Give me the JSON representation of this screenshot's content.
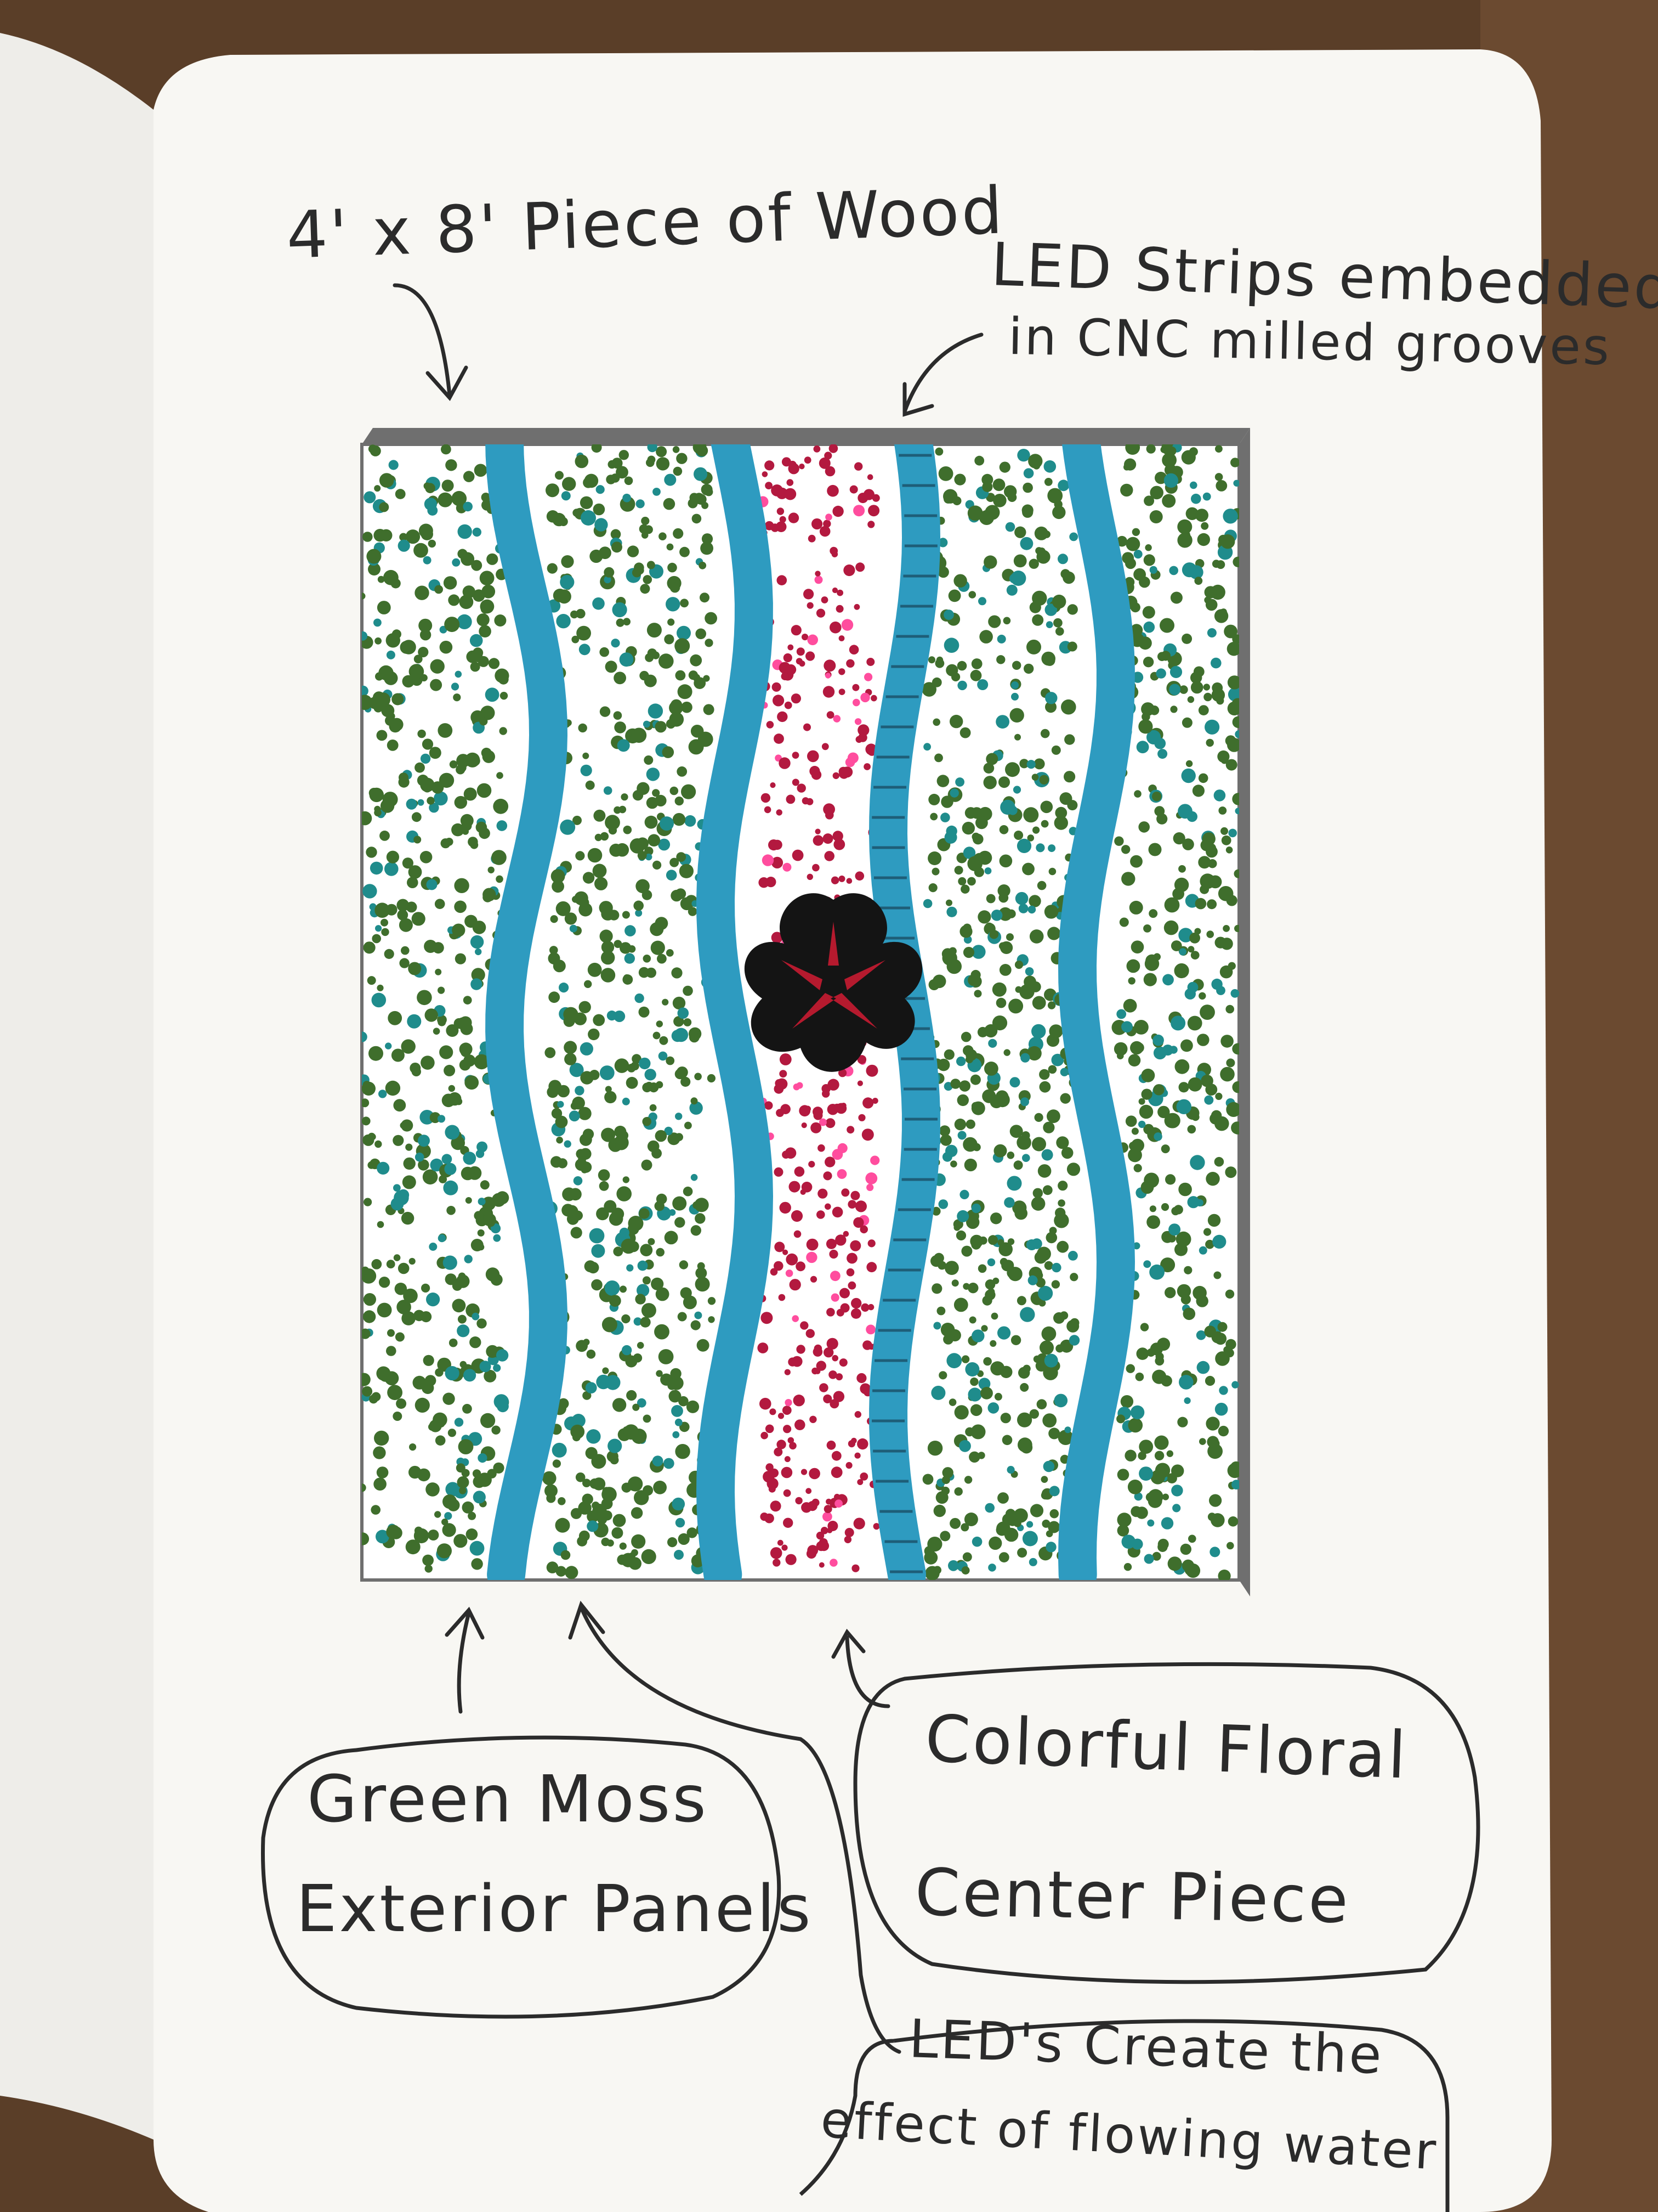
{
  "annotations": {
    "wood": "4' x 8' Piece of Wood",
    "led_strips_line1": "LED Strips embedded",
    "led_strips_line2": "in CNC milled grooves",
    "moss_line1": "Green Moss",
    "moss_line2": "Exterior Panels",
    "floral_line1": "Colorful Floral",
    "floral_line2": "Center Piece",
    "water_line1": "LED's Create the",
    "water_line2": "effect of flowing water"
  },
  "colors": {
    "moss_green": "#3f6e2c",
    "moss_teal": "#1f8c8c",
    "water_blue": "#2e9bc0",
    "floral_dot": "#b3193f",
    "floral_pink": "#ff4d9e",
    "flower": "#141414",
    "flower_petal": "#b51a2e",
    "wood_edge": "#6f6f6f",
    "page": "#f8f7f3",
    "ink": "#2b2b2b"
  },
  "icons": [
    "arrow-icon",
    "flower-icon",
    "speech-bubble-icon"
  ]
}
